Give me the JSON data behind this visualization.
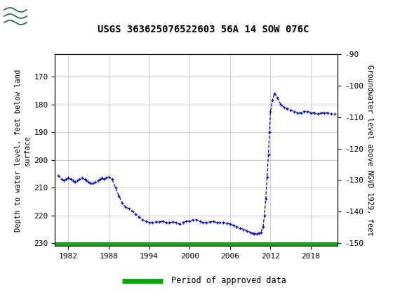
{
  "title": "USGS 363625076522603 56A 14 SOW 076C",
  "ylabel_left": "Depth to water level, feet below land\nsurface",
  "ylabel_right": "Groundwater level above NGVD 1929, feet",
  "ylim_left_top": 162,
  "ylim_left_bottom": 231,
  "ylim_right_top": -90,
  "ylim_right_bottom": -151,
  "yticks_left": [
    170,
    180,
    190,
    200,
    210,
    220,
    230
  ],
  "yticks_right": [
    -90,
    -100,
    -110,
    -120,
    -130,
    -140,
    -150
  ],
  "xlim": [
    1980.0,
    2022.0
  ],
  "xticks": [
    1982,
    1988,
    1994,
    2000,
    2006,
    2012,
    2018
  ],
  "header_color": "#1a6b3c",
  "line_color": "#0000cc",
  "approved_color": "#00aa00",
  "background_color": "#ffffff",
  "grid_color": "#c8c8c8",
  "data_x": [
    1980.5,
    1981.0,
    1981.3,
    1981.6,
    1982.0,
    1982.4,
    1982.7,
    1983.0,
    1983.3,
    1983.6,
    1984.0,
    1984.4,
    1984.7,
    1985.0,
    1985.3,
    1985.6,
    1986.0,
    1986.4,
    1986.7,
    1987.0,
    1987.3,
    1987.6,
    1988.0,
    1988.5,
    1989.0,
    1989.5,
    1990.0,
    1990.5,
    1991.0,
    1991.5,
    1992.0,
    1992.5,
    1993.0,
    1993.5,
    1994.0,
    1994.5,
    1995.0,
    1995.5,
    1996.0,
    1996.5,
    1997.0,
    1997.5,
    1998.0,
    1998.5,
    1999.0,
    1999.5,
    2000.0,
    2000.5,
    2001.0,
    2001.5,
    2002.0,
    2002.5,
    2003.0,
    2003.5,
    2004.0,
    2004.5,
    2005.0,
    2005.5,
    2006.0,
    2006.5,
    2007.0,
    2007.5,
    2008.0,
    2008.5,
    2009.0,
    2009.3,
    2009.6,
    2010.0,
    2010.3,
    2010.6,
    2010.9,
    2011.1,
    2011.3,
    2011.5,
    2011.7,
    2011.85,
    2012.0,
    2012.3,
    2012.6,
    2013.0,
    2013.5,
    2014.0,
    2014.5,
    2015.0,
    2015.5,
    2016.0,
    2016.5,
    2017.0,
    2017.5,
    2018.0,
    2018.5,
    2019.0,
    2019.5,
    2020.0,
    2020.5,
    2021.0,
    2021.5
  ],
  "data_y": [
    205.5,
    207.0,
    207.5,
    207.0,
    206.5,
    207.0,
    207.5,
    208.0,
    207.5,
    207.0,
    206.5,
    207.0,
    207.5,
    208.0,
    208.5,
    208.5,
    208.0,
    207.5,
    207.0,
    206.5,
    207.0,
    206.5,
    206.0,
    207.0,
    210.0,
    213.0,
    215.5,
    217.0,
    217.5,
    218.5,
    219.5,
    220.5,
    221.5,
    222.0,
    222.5,
    222.5,
    222.3,
    222.2,
    222.0,
    222.5,
    222.5,
    222.3,
    222.5,
    223.0,
    222.5,
    222.0,
    222.0,
    221.5,
    221.5,
    222.0,
    222.5,
    222.5,
    222.3,
    222.0,
    222.5,
    222.5,
    222.5,
    222.7,
    223.0,
    223.5,
    224.0,
    224.5,
    225.0,
    225.5,
    226.0,
    226.3,
    226.5,
    226.5,
    226.3,
    226.0,
    224.0,
    220.0,
    214.0,
    206.0,
    198.0,
    190.0,
    182.5,
    178.5,
    176.0,
    177.5,
    180.0,
    181.0,
    181.5,
    182.0,
    182.5,
    183.0,
    183.0,
    182.5,
    182.5,
    183.0,
    183.0,
    183.5,
    183.0,
    183.0,
    183.0,
    183.5,
    183.5
  ],
  "approved_x_start": 1980.0,
  "approved_x_end": 2022.0,
  "approved_y": 230.5,
  "legend_label": "Period of approved data"
}
